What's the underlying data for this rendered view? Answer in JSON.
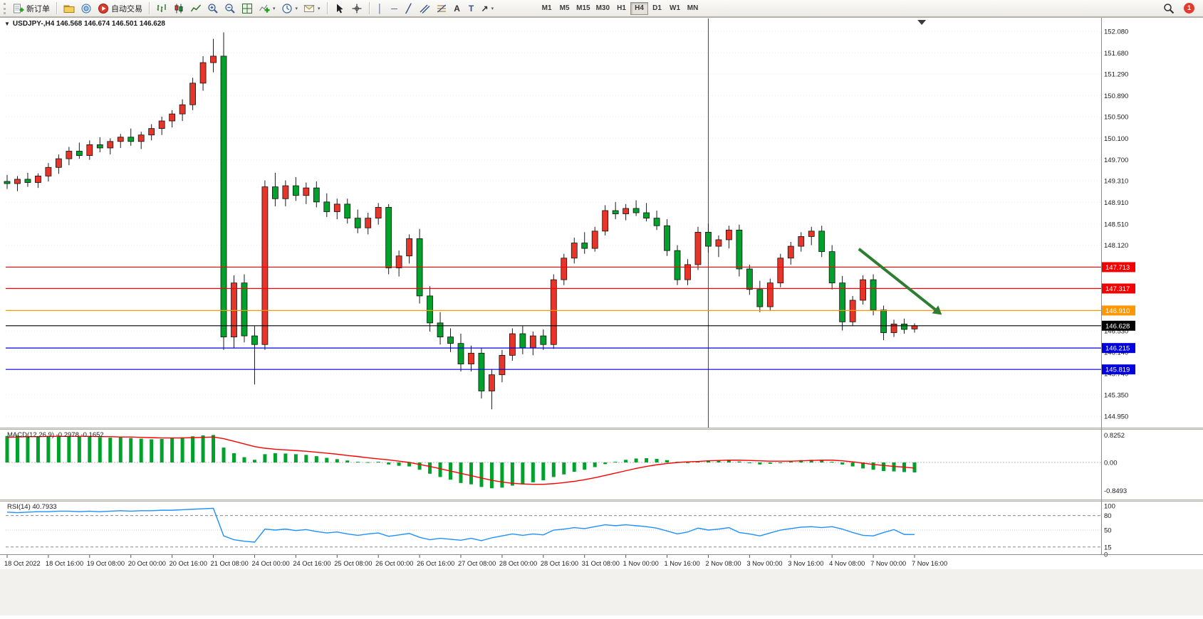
{
  "toolbar": {
    "new_order": "新订单",
    "auto_trading": "自动交易",
    "timeframes": [
      "M1",
      "M5",
      "M15",
      "M30",
      "H1",
      "H4",
      "D1",
      "W1",
      "MN"
    ],
    "active_timeframe": "H4",
    "notification_count": "1"
  },
  "icons": {
    "symbol_caret": "▼",
    "caret": "▾",
    "vline": "│",
    "hline": "─",
    "trend": "╱",
    "text": "A",
    "label": "T",
    "arrow": "↗"
  },
  "chart": {
    "title": "USDJPY-,H4 146.568 146.674 146.501 146.628",
    "symbol": "USDJPY-",
    "period": "H4",
    "open": "146.568",
    "high": "146.674",
    "low": "146.501",
    "close": "146.628",
    "colors": {
      "up": "#e8352a",
      "down": "#00a22c",
      "wick": "#1a1a1a",
      "grid": "#ececec",
      "macd_hist": "#00a22c",
      "macd_signal": "#ff0000",
      "rsi_line": "#1e90ff",
      "arrow": "#2e7d32"
    },
    "levels": [
      {
        "price": 147.713,
        "label": "147.713",
        "color": "#f40000"
      },
      {
        "price": 147.317,
        "label": "147.317",
        "color": "#f40000"
      },
      {
        "price": 146.91,
        "label": "146.910",
        "color": "#ff9800"
      },
      {
        "price": 146.628,
        "label": "146.628",
        "color": "#000000"
      },
      {
        "price": 146.215,
        "label": "146.215",
        "color": "#0000dd"
      },
      {
        "price": 145.819,
        "label": "145.819",
        "color": "#0000dd"
      }
    ],
    "price_axis_labels": [
      "152.080",
      "151.680",
      "151.290",
      "150.890",
      "150.500",
      "150.100",
      "149.700",
      "149.310",
      "148.910",
      "148.510",
      "148.120",
      "146.530",
      "146.140",
      "145.740",
      "145.350",
      "144.950"
    ],
    "time_axis_labels": [
      "18 Oct 2022",
      "18 Oct 16:00",
      "19 Oct 08:00",
      "20 Oct 00:00",
      "20 Oct 16:00",
      "21 Oct 08:00",
      "24 Oct 00:00",
      "24 Oct 16:00",
      "25 Oct 08:00",
      "26 Oct 00:00",
      "26 Oct 16:00",
      "27 Oct 08:00",
      "28 Oct 00:00",
      "28 Oct 16:00",
      "31 Oct 08:00",
      "1 Nov 00:00",
      "1 Nov 16:00",
      "2 Nov 08:00",
      "3 Nov 00:00",
      "3 Nov 16:00",
      "4 Nov 08:00",
      "7 Nov 00:00",
      "7 Nov 16:00"
    ],
    "annotations": {
      "trend_arrow": {
        "from_bar": 83.6,
        "from_price": 148.05,
        "to_bar": 91.0,
        "to_price": 146.93,
        "color": "#2e7d32"
      },
      "vertical_line": {
        "bar": 69
      },
      "shift_marker_bar": 89.7
    }
  },
  "chart_data": {
    "type": "candlestick",
    "symbol": "USDJPY-",
    "timeframe": "H4",
    "candle_format": [
      "open",
      "high",
      "low",
      "close"
    ],
    "candles": [
      [
        149.3,
        149.42,
        149.16,
        149.26
      ],
      [
        149.26,
        149.4,
        149.12,
        149.34
      ],
      [
        149.34,
        149.46,
        149.2,
        149.28
      ],
      [
        149.28,
        149.45,
        149.18,
        149.4
      ],
      [
        149.4,
        149.64,
        149.3,
        149.56
      ],
      [
        149.56,
        149.8,
        149.44,
        149.72
      ],
      [
        149.72,
        149.94,
        149.6,
        149.86
      ],
      [
        149.86,
        150.02,
        149.72,
        149.78
      ],
      [
        149.78,
        150.06,
        149.7,
        149.98
      ],
      [
        149.98,
        150.12,
        149.84,
        149.92
      ],
      [
        149.92,
        150.1,
        149.8,
        150.04
      ],
      [
        150.04,
        150.18,
        149.92,
        150.12
      ],
      [
        150.12,
        150.28,
        149.96,
        150.04
      ],
      [
        150.04,
        150.22,
        149.9,
        150.16
      ],
      [
        150.16,
        150.36,
        150.06,
        150.28
      ],
      [
        150.28,
        150.5,
        150.16,
        150.42
      ],
      [
        150.42,
        150.62,
        150.3,
        150.55
      ],
      [
        150.55,
        150.82,
        150.42,
        150.72
      ],
      [
        150.72,
        151.22,
        150.62,
        151.12
      ],
      [
        151.12,
        151.62,
        150.98,
        151.5
      ],
      [
        151.5,
        151.94,
        151.32,
        151.62
      ],
      [
        151.62,
        152.06,
        146.18,
        146.42
      ],
      [
        146.42,
        147.56,
        146.22,
        147.42
      ],
      [
        147.42,
        147.58,
        146.32,
        146.44
      ],
      [
        146.44,
        146.62,
        145.54,
        146.28
      ],
      [
        146.28,
        149.32,
        146.18,
        149.2
      ],
      [
        149.2,
        149.46,
        148.84,
        148.98
      ],
      [
        148.98,
        149.32,
        148.84,
        149.22
      ],
      [
        149.22,
        149.38,
        148.94,
        149.04
      ],
      [
        149.04,
        149.28,
        148.88,
        149.18
      ],
      [
        149.18,
        149.3,
        148.82,
        148.92
      ],
      [
        148.92,
        149.08,
        148.64,
        148.74
      ],
      [
        148.74,
        148.98,
        148.6,
        148.88
      ],
      [
        148.88,
        148.98,
        148.52,
        148.62
      ],
      [
        148.62,
        148.78,
        148.34,
        148.44
      ],
      [
        148.44,
        148.72,
        148.32,
        148.62
      ],
      [
        148.62,
        148.9,
        148.5,
        148.82
      ],
      [
        148.82,
        148.88,
        147.58,
        147.7
      ],
      [
        147.7,
        148.02,
        147.54,
        147.92
      ],
      [
        147.92,
        148.32,
        147.78,
        148.24
      ],
      [
        148.24,
        148.42,
        147.04,
        147.18
      ],
      [
        147.18,
        147.36,
        146.52,
        146.68
      ],
      [
        146.68,
        146.88,
        146.28,
        146.42
      ],
      [
        146.42,
        146.58,
        146.14,
        146.3
      ],
      [
        146.3,
        146.48,
        145.78,
        145.92
      ],
      [
        145.92,
        146.26,
        145.78,
        146.12
      ],
      [
        146.12,
        146.22,
        145.28,
        145.42
      ],
      [
        145.42,
        145.82,
        145.08,
        145.72
      ],
      [
        145.72,
        146.18,
        145.58,
        146.08
      ],
      [
        146.08,
        146.58,
        145.98,
        146.48
      ],
      [
        146.48,
        146.62,
        146.1,
        146.22
      ],
      [
        146.22,
        146.52,
        146.08,
        146.44
      ],
      [
        146.44,
        146.56,
        146.18,
        146.28
      ],
      [
        146.28,
        147.58,
        146.2,
        147.48
      ],
      [
        147.48,
        147.96,
        147.38,
        147.88
      ],
      [
        147.88,
        148.26,
        147.78,
        148.16
      ],
      [
        148.16,
        148.36,
        147.96,
        148.06
      ],
      [
        148.06,
        148.46,
        148.0,
        148.38
      ],
      [
        148.38,
        148.86,
        148.3,
        148.76
      ],
      [
        148.76,
        148.92,
        148.6,
        148.7
      ],
      [
        148.7,
        148.88,
        148.58,
        148.8
      ],
      [
        148.8,
        148.95,
        148.66,
        148.72
      ],
      [
        148.72,
        148.9,
        148.56,
        148.62
      ],
      [
        148.62,
        148.76,
        148.4,
        148.48
      ],
      [
        148.48,
        148.6,
        147.92,
        148.02
      ],
      [
        148.02,
        148.12,
        147.38,
        147.48
      ],
      [
        147.48,
        147.86,
        147.38,
        147.76
      ],
      [
        147.76,
        148.46,
        147.66,
        148.36
      ],
      [
        148.36,
        148.52,
        147.98,
        148.1
      ],
      [
        148.1,
        148.3,
        147.9,
        148.22
      ],
      [
        148.22,
        148.48,
        148.06,
        148.4
      ],
      [
        148.4,
        148.5,
        147.54,
        147.68
      ],
      [
        147.68,
        147.76,
        147.2,
        147.3
      ],
      [
        147.3,
        147.46,
        146.88,
        146.98
      ],
      [
        146.98,
        147.5,
        146.9,
        147.42
      ],
      [
        147.42,
        147.96,
        147.34,
        147.88
      ],
      [
        147.88,
        148.18,
        147.76,
        148.1
      ],
      [
        148.1,
        148.36,
        148.0,
        148.28
      ],
      [
        148.28,
        148.46,
        148.12,
        148.38
      ],
      [
        148.38,
        148.48,
        147.9,
        148.0
      ],
      [
        148.0,
        148.12,
        147.3,
        147.42
      ],
      [
        147.42,
        147.55,
        146.54,
        146.7
      ],
      [
        146.7,
        147.18,
        146.62,
        147.1
      ],
      [
        147.1,
        147.56,
        147.02,
        147.48
      ],
      [
        147.48,
        147.58,
        146.82,
        146.92
      ],
      [
        146.92,
        147.0,
        146.36,
        146.5
      ],
      [
        146.5,
        146.74,
        146.42,
        146.66
      ],
      [
        146.66,
        146.76,
        146.48,
        146.56
      ],
      [
        146.568,
        146.674,
        146.501,
        146.628
      ]
    ],
    "macd": {
      "label": "MACD(12,26,9) -0.2978 -0.1652",
      "params": "12,26,9",
      "main_value": "-0.2978",
      "signal_value": "-0.1652",
      "scale": [
        "0.8252",
        "0.00",
        "-0.8493"
      ],
      "histogram": [
        0.8,
        0.81,
        0.8,
        0.79,
        0.8,
        0.81,
        0.8,
        0.78,
        0.79,
        0.76,
        0.75,
        0.76,
        0.74,
        0.72,
        0.7,
        0.71,
        0.73,
        0.76,
        0.79,
        0.82,
        0.83,
        0.45,
        0.28,
        0.16,
        0.08,
        0.25,
        0.28,
        0.27,
        0.25,
        0.23,
        0.19,
        0.14,
        0.1,
        0.06,
        0.02,
        0.01,
        0.02,
        -0.06,
        -0.1,
        -0.12,
        -0.22,
        -0.34,
        -0.44,
        -0.52,
        -0.62,
        -0.66,
        -0.74,
        -0.78,
        -0.76,
        -0.7,
        -0.66,
        -0.6,
        -0.54,
        -0.44,
        -0.36,
        -0.28,
        -0.22,
        -0.14,
        -0.05,
        0.02,
        0.08,
        0.12,
        0.13,
        0.11,
        0.07,
        0.02,
        0.0,
        0.03,
        0.06,
        0.06,
        0.07,
        0.03,
        -0.02,
        -0.06,
        -0.04,
        0.0,
        0.04,
        0.07,
        0.08,
        0.06,
        0.02,
        -0.06,
        -0.12,
        -0.18,
        -0.22,
        -0.26,
        -0.27,
        -0.29,
        -0.3
      ],
      "signal": [
        0.76,
        0.77,
        0.78,
        0.78,
        0.79,
        0.79,
        0.79,
        0.79,
        0.79,
        0.78,
        0.78,
        0.77,
        0.77,
        0.76,
        0.75,
        0.74,
        0.74,
        0.74,
        0.75,
        0.76,
        0.77,
        0.72,
        0.64,
        0.56,
        0.48,
        0.43,
        0.4,
        0.38,
        0.36,
        0.34,
        0.31,
        0.28,
        0.25,
        0.21,
        0.18,
        0.14,
        0.11,
        0.08,
        0.04,
        0.0,
        -0.06,
        -0.12,
        -0.19,
        -0.26,
        -0.33,
        -0.4,
        -0.47,
        -0.54,
        -0.59,
        -0.63,
        -0.65,
        -0.66,
        -0.66,
        -0.64,
        -0.61,
        -0.57,
        -0.52,
        -0.46,
        -0.39,
        -0.32,
        -0.25,
        -0.18,
        -0.12,
        -0.07,
        -0.03,
        0.0,
        0.02,
        0.03,
        0.05,
        0.06,
        0.07,
        0.07,
        0.06,
        0.05,
        0.04,
        0.04,
        0.04,
        0.05,
        0.06,
        0.07,
        0.07,
        0.05,
        0.02,
        -0.02,
        -0.06,
        -0.09,
        -0.12,
        -0.14,
        -0.17
      ]
    },
    "rsi": {
      "label": "RSI(14) 40.7933",
      "period": "14",
      "value": "40.7933",
      "scale": [
        "100",
        "80",
        "50",
        "15",
        "0"
      ],
      "levels": [
        80,
        50,
        15
      ],
      "values": [
        87,
        86,
        87,
        88,
        88,
        89,
        89,
        88,
        89,
        88,
        89,
        90,
        89,
        90,
        90,
        91,
        91,
        92,
        93,
        94,
        95,
        38,
        30,
        27,
        25,
        52,
        50,
        52,
        49,
        51,
        47,
        44,
        46,
        42,
        39,
        42,
        44,
        37,
        40,
        43,
        35,
        30,
        33,
        31,
        29,
        33,
        28,
        34,
        38,
        42,
        39,
        42,
        40,
        50,
        52,
        55,
        53,
        57,
        61,
        59,
        61,
        59,
        57,
        54,
        48,
        42,
        46,
        54,
        50,
        52,
        55,
        45,
        42,
        38,
        44,
        50,
        53,
        56,
        57,
        55,
        57,
        52,
        45,
        39,
        38,
        45,
        51,
        41,
        40.79
      ]
    }
  }
}
